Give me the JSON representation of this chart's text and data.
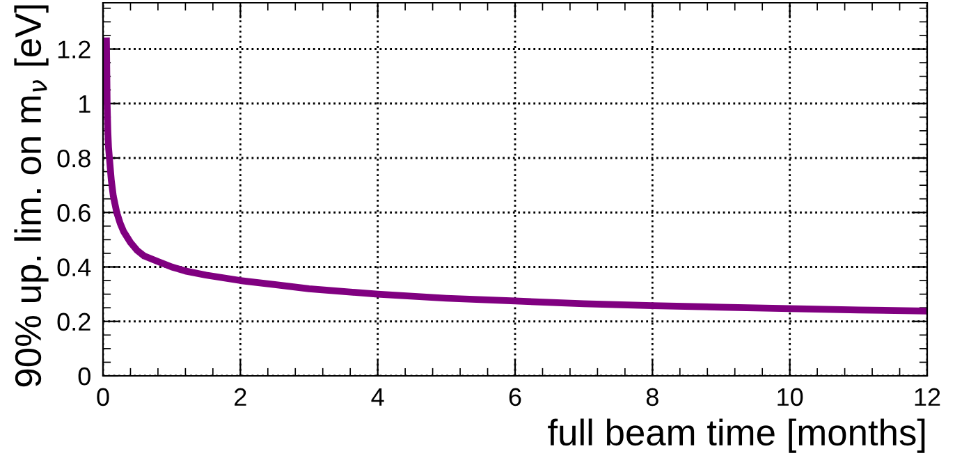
{
  "chart_data": {
    "type": "line",
    "xlabel": "full beam time [months]",
    "ylabel": "90% up. lim. on m$_{ν}$ [eV]",
    "xlim": [
      0,
      12
    ],
    "ylim": [
      0,
      1.37
    ],
    "xticks": [
      0,
      2,
      4,
      6,
      8,
      10,
      12
    ],
    "yticks": [
      0,
      0.2,
      0.4,
      0.6,
      0.8,
      1,
      1.2
    ],
    "grid": true,
    "marker": "none",
    "line_style": "solid",
    "series": [
      {
        "color": "#800080",
        "x": [
          0.05,
          0.06,
          0.07,
          0.08,
          0.1,
          0.12,
          0.15,
          0.2,
          0.25,
          0.3,
          0.4,
          0.5,
          0.6,
          0.7,
          0.8,
          1,
          1.2,
          1.5,
          2,
          2.5,
          3,
          4,
          5,
          6,
          7,
          8,
          9,
          10,
          11,
          12
        ],
        "values": [
          1.23,
          1.0,
          0.9,
          0.84,
          0.78,
          0.72,
          0.66,
          0.6,
          0.56,
          0.53,
          0.49,
          0.46,
          0.44,
          0.43,
          0.42,
          0.4,
          0.385,
          0.37,
          0.35,
          0.335,
          0.32,
          0.3,
          0.285,
          0.275,
          0.265,
          0.258,
          0.252,
          0.247,
          0.242,
          0.238
        ]
      }
    ]
  }
}
